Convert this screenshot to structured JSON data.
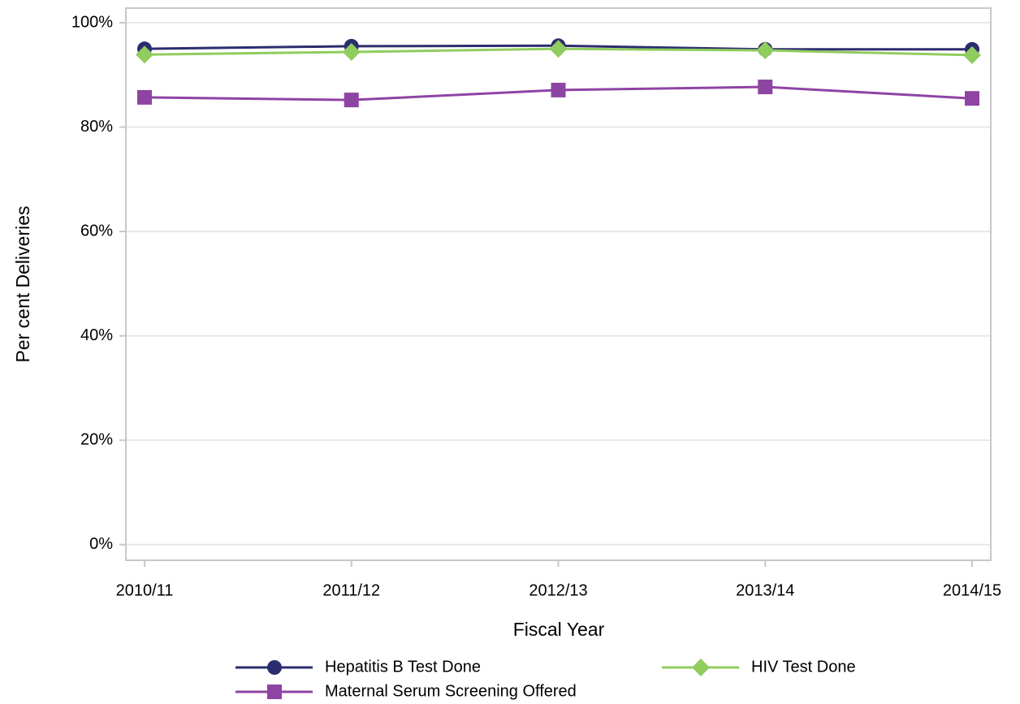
{
  "chart_data": {
    "type": "line",
    "x_label": "Fiscal Year",
    "y_label": "Per cent Deliveries",
    "categories": [
      "2010/11",
      "2011/12",
      "2012/13",
      "2013/14",
      "2014/15"
    ],
    "series": [
      {
        "name": "Hepatitis B Test Done",
        "color": "#2b2d6e",
        "marker": "circle",
        "values": [
          95.0,
          95.5,
          95.6,
          94.9,
          94.9
        ]
      },
      {
        "name": "HIV Test Done",
        "color": "#90cc5e",
        "marker": "diamond",
        "values": [
          93.9,
          94.4,
          95.0,
          94.7,
          93.8
        ]
      },
      {
        "name": "Maternal Serum Screening Offered",
        "color": "#8e44a3",
        "marker": "square",
        "values": [
          85.7,
          85.2,
          87.1,
          87.7,
          85.5
        ]
      }
    ],
    "ylim": [
      -3,
      102.8
    ],
    "yticks": [
      {
        "value": 0,
        "label": "0%"
      },
      {
        "value": 20,
        "label": "20%"
      },
      {
        "value": 40,
        "label": "40%"
      },
      {
        "value": 60,
        "label": "60%"
      },
      {
        "value": 80,
        "label": "80%"
      },
      {
        "value": 100,
        "label": "100%"
      }
    ],
    "grid": true
  }
}
